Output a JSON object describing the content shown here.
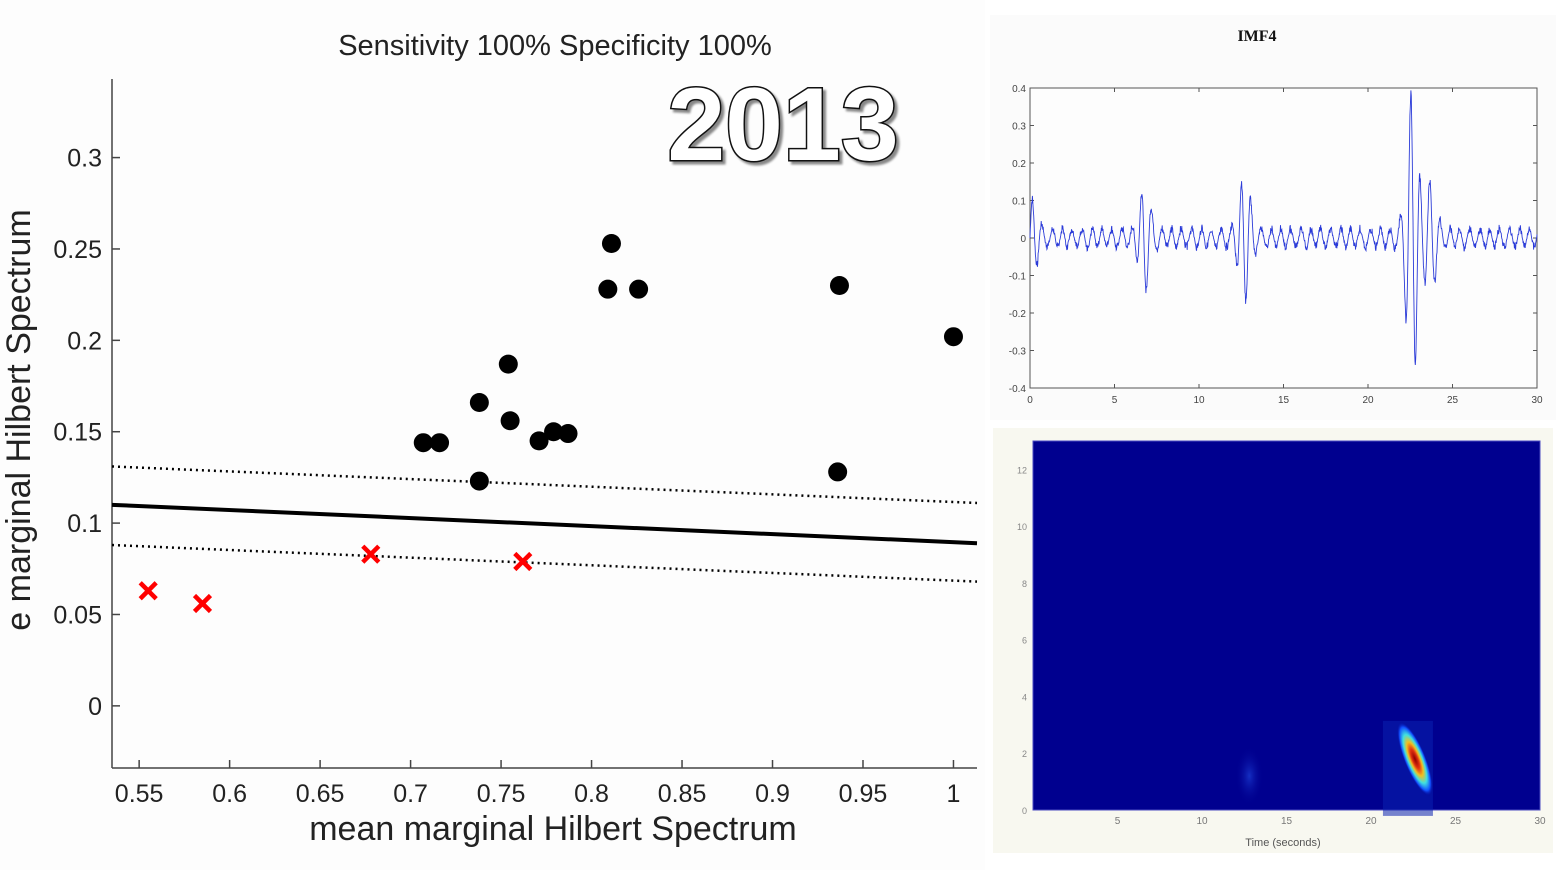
{
  "chart_data": [
    {
      "type": "scatter",
      "title": "Sensitivity 100%  Specificity 100%",
      "annotation": "2013",
      "xlabel": "mean marginal Hilbert Spectrum",
      "ylabel": "e marginal Hilbert Spectrum",
      "xlim": [
        0.535,
        1.013
      ],
      "ylim": [
        -0.034,
        0.343
      ],
      "x_ticks": [
        0.55,
        0.6,
        0.65,
        0.7,
        0.75,
        0.8,
        0.85,
        0.9,
        0.95,
        1
      ],
      "x_tick_labels": [
        "0.55",
        "0.6",
        "0.65",
        "0.7",
        "0.75",
        "0.8",
        "0.85",
        "0.9",
        "0.95",
        "1"
      ],
      "y_ticks": [
        0,
        0.05,
        0.1,
        0.15,
        0.2,
        0.25,
        0.3
      ],
      "y_tick_labels": [
        "0",
        "0.05",
        "0.1",
        "0.15",
        "0.2",
        "0.25",
        "0.3"
      ],
      "grid": false,
      "series": [
        {
          "name": "class-circle",
          "marker": "circle",
          "color": "#000000",
          "points": [
            [
              0.811,
              0.253
            ],
            [
              0.809,
              0.228
            ],
            [
              0.826,
              0.228
            ],
            [
              0.754,
              0.187
            ],
            [
              0.738,
              0.166
            ],
            [
              0.755,
              0.156
            ],
            [
              0.707,
              0.144
            ],
            [
              0.716,
              0.144
            ],
            [
              0.771,
              0.145
            ],
            [
              0.779,
              0.15
            ],
            [
              0.787,
              0.149
            ],
            [
              0.738,
              0.123
            ],
            [
              0.937,
              0.23
            ],
            [
              1.0,
              0.202
            ],
            [
              0.936,
              0.128
            ]
          ]
        },
        {
          "name": "class-cross",
          "marker": "x",
          "color": "#ff0000",
          "points": [
            [
              0.555,
              0.063
            ],
            [
              0.585,
              0.056
            ],
            [
              0.678,
              0.083
            ],
            [
              0.762,
              0.079
            ]
          ]
        }
      ],
      "lines": [
        {
          "name": "decision-boundary",
          "style": "solid",
          "color": "#000000",
          "x": [
            0.535,
            1.013
          ],
          "y": [
            0.11,
            0.089
          ]
        },
        {
          "name": "margin-upper",
          "style": "dotted",
          "color": "#000000",
          "x": [
            0.535,
            1.013
          ],
          "y": [
            0.131,
            0.111
          ]
        },
        {
          "name": "margin-lower",
          "style": "dotted",
          "color": "#000000",
          "x": [
            0.535,
            1.013
          ],
          "y": [
            0.088,
            0.068
          ]
        }
      ]
    },
    {
      "type": "line",
      "title": "IMF4",
      "xlim": [
        0,
        30
      ],
      "ylim": [
        -0.4,
        0.4
      ],
      "x_ticks": [
        0,
        5,
        10,
        15,
        20,
        25,
        30
      ],
      "x_tick_labels": [
        "0",
        "5",
        "10",
        "15",
        "20",
        "25",
        "30"
      ],
      "y_ticks": [
        -0.4,
        -0.3,
        -0.2,
        -0.1,
        0,
        0.1,
        0.2,
        0.3,
        0.4
      ],
      "y_tick_labels": [
        "-0.4",
        "-0.3",
        "-0.2",
        "-0.1",
        "0",
        "0.1",
        "0.2",
        "0.3",
        "0.4"
      ],
      "color": "#2b3bd8",
      "bursts": [
        {
          "t": 0.1,
          "amp": 0.08
        },
        {
          "t": 6.8,
          "amp": 0.12
        },
        {
          "t": 12.7,
          "amp": 0.15
        },
        {
          "t": 22.6,
          "amp": 0.37
        },
        {
          "t": 23.7,
          "amp": 0.13
        }
      ],
      "baseline_amp": 0.03
    },
    {
      "type": "heatmap",
      "xlabel": "Time (seconds)",
      "xlim": [
        0,
        30
      ],
      "ylim": [
        0,
        13
      ],
      "x_ticks": [
        5,
        10,
        15,
        20,
        25,
        30
      ],
      "x_tick_labels": [
        "5",
        "10",
        "15",
        "20",
        "25",
        "30"
      ],
      "y_ticks": [
        0,
        2,
        4,
        6,
        8,
        10,
        12
      ],
      "y_tick_labels": [
        "0",
        "2",
        "4",
        "6",
        "8",
        "10",
        "12"
      ],
      "background_color": "#00008f",
      "hotspots": [
        {
          "t": 22.6,
          "f": 1.8,
          "intensity": 1.0
        },
        {
          "t": 12.8,
          "f": 1.2,
          "intensity": 0.2
        }
      ]
    }
  ]
}
